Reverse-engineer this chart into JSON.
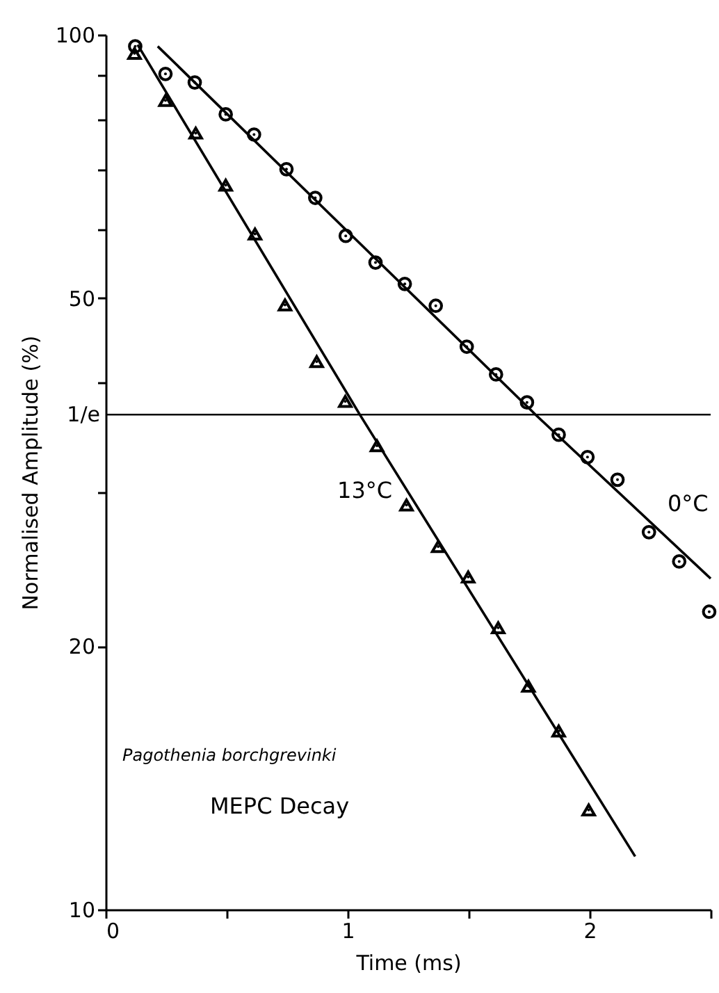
{
  "chart_data": {
    "type": "scatter",
    "xlabel": "Time    (ms)",
    "ylabel": "Normalised   Amplitude   (%)",
    "log": "y",
    "xlim": [
      0,
      2.5
    ],
    "xticks": [
      0,
      {
        "value": 0.5,
        "label": null
      },
      1,
      {
        "value": 1.5,
        "label": null
      },
      2,
      {
        "value": 2.5,
        "label": null
      }
    ],
    "ylim": [
      10,
      100
    ],
    "yticks": [
      10,
      20,
      {
        "value": 30,
        "label": null
      },
      {
        "value": 40,
        "label": null
      },
      50,
      {
        "value": 60,
        "label": null
      },
      {
        "value": 70,
        "label": null
      },
      {
        "value": 80,
        "label": null
      },
      {
        "value": 90,
        "label": null
      },
      100
    ],
    "grid": false,
    "series": [
      {
        "name": "0°C",
        "color": "#000000",
        "marker": "circle",
        "x": [
          0.122,
          0.247,
          0.368,
          0.496,
          0.613,
          0.747,
          0.866,
          0.992,
          1.115,
          1.236,
          1.364,
          1.492,
          1.613,
          1.741,
          1.872,
          1.991,
          2.115,
          2.245,
          2.37,
          2.494
        ],
        "values": [
          97.0,
          90.2,
          88.2,
          81.1,
          76.9,
          70.2,
          65.1,
          58.9,
          54.9,
          51.9,
          49.0,
          44.0,
          40.9,
          38.0,
          34.9,
          32.9,
          31.0,
          27.0,
          25.0,
          21.9
        ]
      },
      {
        "name": "13°C",
        "color": "#000000",
        "marker": "triangle",
        "x": [
          0.119,
          0.247,
          0.372,
          0.496,
          0.617,
          0.741,
          0.872,
          0.99,
          1.121,
          1.243,
          1.374,
          1.498,
          1.622,
          1.747,
          1.872,
          1.996
        ],
        "values": [
          95.2,
          84.1,
          77.2,
          67.3,
          59.2,
          49.1,
          42.3,
          38.1,
          33.9,
          29.0,
          26.0,
          24.0,
          21.0,
          18.0,
          16.0,
          13.0
        ]
      },
      {
        "type": "line",
        "color": "#000000",
        "x": [
          0.215,
          1.776,
          2.5
        ],
        "values": [
          97.0,
          36.8,
          23.9
        ]
      },
      {
        "type": "line",
        "color": "#000000",
        "x": [
          0.132,
          1.05,
          2.188
        ],
        "values": [
          97.4,
          36.8,
          11.5
        ]
      }
    ],
    "ref_lines": [
      {
        "axis": "y",
        "value": 36.79,
        "label": "1/e",
        "color": "#000000"
      }
    ],
    "annotations": [
      "Pagothenia borchgrevinki",
      "MEPC Decay"
    ]
  }
}
